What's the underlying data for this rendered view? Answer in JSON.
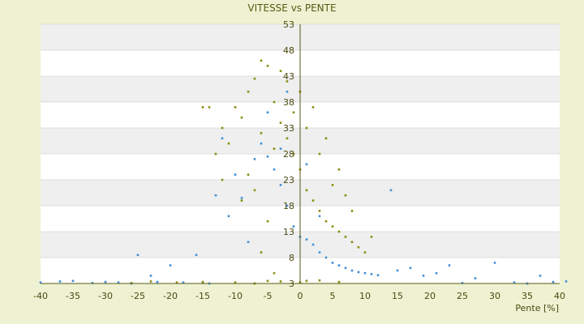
{
  "chart_data": {
    "type": "scatter",
    "title": "VITESSE vs PENTE",
    "xlabel": "Pente [%]",
    "ylabel": "",
    "xlim": [
      -40,
      40
    ],
    "ylim": [
      3,
      53
    ],
    "x_ticks": [
      -40,
      -35,
      -30,
      -25,
      -20,
      -15,
      -10,
      -5,
      0,
      5,
      10,
      15,
      20,
      25,
      30,
      35,
      40
    ],
    "y_tick_labels": [
      "53",
      "48",
      "43",
      "38",
      "33",
      "28",
      "23",
      "18",
      "13",
      "8",
      "3"
    ],
    "y_tick_values": [
      53,
      48,
      43,
      38,
      33,
      28,
      23,
      18,
      13,
      8,
      3
    ],
    "grid": true,
    "legend": "none",
    "series": [
      {
        "color": "#3f8fd8",
        "points": [
          [
            -40,
            3.2
          ],
          [
            -37,
            3.4
          ],
          [
            -35,
            3.5
          ],
          [
            -32,
            3.1
          ],
          [
            -30,
            3.3
          ],
          [
            -28,
            3.2
          ],
          [
            -26,
            3.0
          ],
          [
            -25,
            8.5
          ],
          [
            -23,
            4.5
          ],
          [
            -22,
            3.3
          ],
          [
            -20,
            6.5
          ],
          [
            -18,
            3.2
          ],
          [
            -16,
            8.5
          ],
          [
            -15,
            3.1
          ],
          [
            -14,
            3.0
          ],
          [
            -13,
            20.0
          ],
          [
            -12,
            31.0
          ],
          [
            -11,
            16.0
          ],
          [
            -10,
            24.0
          ],
          [
            -9,
            19.5
          ],
          [
            -8,
            11.0
          ],
          [
            -7,
            27.0
          ],
          [
            -6,
            30.0
          ],
          [
            -5,
            36.0
          ],
          [
            -4,
            25.0
          ],
          [
            -3,
            22.0
          ],
          [
            -2,
            18.0
          ],
          [
            -1,
            14.0
          ],
          [
            0,
            12.0
          ],
          [
            1,
            11.5
          ],
          [
            2,
            10.5
          ],
          [
            3,
            9.0
          ],
          [
            4,
            8.0
          ],
          [
            5,
            7.0
          ],
          [
            6,
            6.5
          ],
          [
            7,
            6.0
          ],
          [
            8,
            5.5
          ],
          [
            9,
            5.2
          ],
          [
            10,
            5.0
          ],
          [
            11,
            4.8
          ],
          [
            12,
            4.6
          ],
          [
            14,
            21.0
          ],
          [
            15,
            5.5
          ],
          [
            17,
            6.0
          ],
          [
            19,
            4.5
          ],
          [
            21,
            5.0
          ],
          [
            23,
            6.5
          ],
          [
            25,
            3.1
          ],
          [
            27,
            4.0
          ],
          [
            30,
            7.0
          ],
          [
            33,
            3.2
          ],
          [
            35,
            3.0
          ],
          [
            37,
            4.5
          ],
          [
            39,
            3.3
          ],
          [
            41,
            3.4
          ],
          [
            -3,
            29.0
          ],
          [
            -5,
            27.5
          ],
          [
            -2,
            40.0
          ],
          [
            1,
            26.0
          ],
          [
            3,
            16.0
          ]
        ]
      },
      {
        "color": "#8b8b10",
        "points": [
          [
            -15,
            37.0
          ],
          [
            -14,
            37.0
          ],
          [
            -12,
            33.0
          ],
          [
            -10,
            37.0
          ],
          [
            -9,
            35.0
          ],
          [
            -8,
            40.0
          ],
          [
            -7,
            42.5
          ],
          [
            -6,
            46.0
          ],
          [
            -5,
            45.0
          ],
          [
            -4,
            38.0
          ],
          [
            -3,
            34.0
          ],
          [
            -2,
            31.0
          ],
          [
            -1,
            28.0
          ],
          [
            0,
            25.0
          ],
          [
            1,
            21.0
          ],
          [
            2,
            19.0
          ],
          [
            3,
            17.0
          ],
          [
            4,
            15.0
          ],
          [
            5,
            14.0
          ],
          [
            6,
            13.0
          ],
          [
            7,
            12.0
          ],
          [
            8,
            11.0
          ],
          [
            9,
            10.0
          ],
          [
            10,
            9.0
          ],
          [
            -6,
            32.0
          ],
          [
            -4,
            29.0
          ],
          [
            -2,
            42.0
          ],
          [
            1,
            33.0
          ],
          [
            3,
            28.0
          ],
          [
            5,
            22.0
          ],
          [
            -8,
            24.0
          ],
          [
            -9,
            19.0
          ],
          [
            -11,
            30.0
          ],
          [
            -7,
            21.0
          ],
          [
            2,
            37.0
          ],
          [
            4,
            31.0
          ],
          [
            6,
            25.0
          ],
          [
            -1,
            36.0
          ],
          [
            0,
            40.0
          ],
          [
            -3,
            44.0
          ],
          [
            -13,
            28.0
          ],
          [
            -12,
            23.0
          ],
          [
            8,
            17.0
          ],
          [
            11,
            12.0
          ],
          [
            7,
            20.0
          ],
          [
            -5,
            15.0
          ],
          [
            -6,
            9.0
          ],
          [
            -4,
            5.0
          ],
          [
            -5,
            3.5
          ],
          [
            -15,
            3.3
          ],
          [
            -19,
            3.2
          ],
          [
            -23,
            3.4
          ],
          [
            -26,
            3.1
          ],
          [
            -10,
            3.2
          ],
          [
            -7,
            3.0
          ],
          [
            -3,
            3.4
          ],
          [
            0,
            3.2
          ],
          [
            1,
            3.5
          ],
          [
            3,
            3.6
          ],
          [
            6,
            3.3
          ]
        ]
      }
    ]
  }
}
